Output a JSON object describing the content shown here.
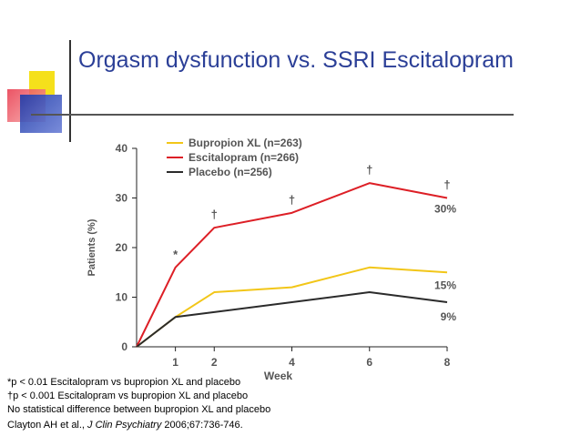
{
  "slide": {
    "title": "Orgasm dysfunction vs. SSRI Escitalopram",
    "footnotes": [
      "*p < 0.01 Escitalopram vs bupropion XL and placebo",
      "†p < 0.001 Escitalopram vs bupropion XL and placebo",
      "No statistical difference between bupropion XL and placebo"
    ],
    "citation": {
      "authors": "Clayton AH et al., ",
      "journal": "J Clin Psychiatry",
      "details": " 2006;67:736-746."
    }
  },
  "chart_data": {
    "type": "line",
    "xlabel": "Week",
    "ylabel": "Patients (%)",
    "x": [
      0,
      1,
      2,
      4,
      6,
      8
    ],
    "x_ticks": [
      1,
      2,
      4,
      6,
      8
    ],
    "y_ticks": [
      0,
      10,
      20,
      30,
      40
    ],
    "xlim": [
      0,
      8
    ],
    "ylim": [
      0,
      40
    ],
    "legend_position": "top-center",
    "series": [
      {
        "name": "Bupropion XL (n=263)",
        "color": "#f2c618",
        "values": [
          0,
          6,
          11,
          12,
          16,
          15
        ],
        "end_label": "15%"
      },
      {
        "name": "Escitalopram (n=266)",
        "color": "#dd1f26",
        "values": [
          0,
          16,
          24,
          27,
          33,
          30
        ],
        "end_label": "30%"
      },
      {
        "name": "Placebo (n=256)",
        "color": "#2b2b2b",
        "values": [
          0,
          6,
          7,
          9,
          11,
          9
        ],
        "end_label": "9%"
      }
    ],
    "annotations": [
      {
        "x": 1,
        "y": 16,
        "text": "*"
      },
      {
        "x": 2,
        "y": 24,
        "text": "†"
      },
      {
        "x": 4,
        "y": 27,
        "text": "†"
      },
      {
        "x": 6,
        "y": 33,
        "text": "†"
      },
      {
        "x": 8,
        "y": 30,
        "text": "†"
      }
    ]
  }
}
